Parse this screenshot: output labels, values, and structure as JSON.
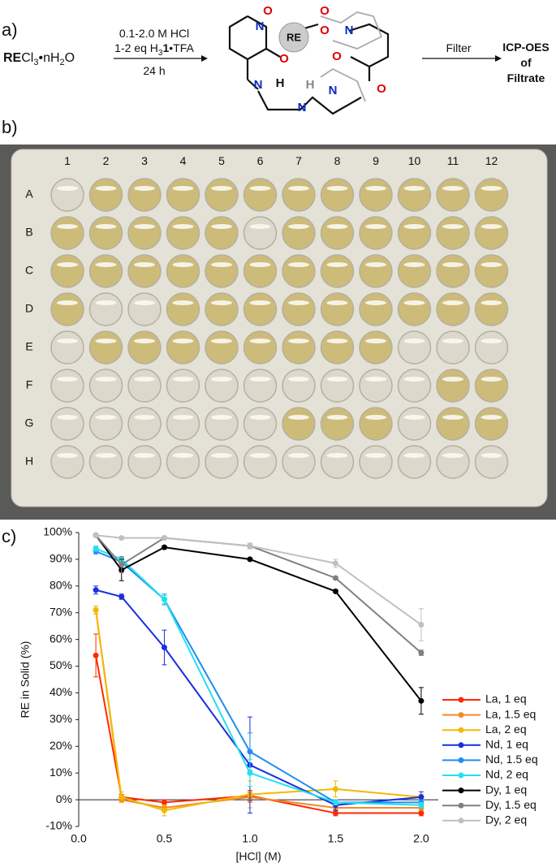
{
  "panel_a": {
    "label": "a)",
    "reactant": [
      "RE",
      "Cl",
      "3",
      "•nH",
      "2",
      "O"
    ],
    "conditions": {
      "line1": "0.1-2.0 M HCl",
      "line2": [
        "1-2 eq H",
        "3",
        "1",
        "•TFA"
      ],
      "line3": "24 h"
    },
    "filter": "Filter",
    "product": [
      "ICP-OES",
      "of",
      "Filtrate"
    ],
    "atoms": [
      "O",
      "N",
      "O",
      "RE",
      "O",
      "O",
      "N",
      "O",
      "N",
      "H",
      "N",
      "H",
      "N",
      "O"
    ]
  },
  "panel_b": {
    "label": "b)",
    "columns": [
      "1",
      "2",
      "3",
      "4",
      "5",
      "6",
      "7",
      "8",
      "9",
      "10",
      "11",
      "12"
    ],
    "rows": [
      "A",
      "B",
      "C",
      "D",
      "E",
      "F",
      "G",
      "H"
    ]
  },
  "chart_data": {
    "type": "line",
    "panel_label": "c)",
    "xlabel": "[HCl] (M)",
    "ylabel": "RE in Solid (%)",
    "x": [
      0.1,
      0.25,
      0.5,
      1.0,
      1.5,
      2.0
    ],
    "xlim": [
      0,
      2.1
    ],
    "xticks": [
      {
        "value": 0,
        "label": "0.0"
      },
      0.5,
      {
        "value": 1,
        "label": "1.0"
      },
      1.5,
      {
        "value": 2,
        "label": "2.0"
      }
    ],
    "ylim": [
      -10,
      100
    ],
    "yticks": [
      {
        "value": -10,
        "label": "-10%"
      },
      {
        "value": 0,
        "label": "0%"
      },
      {
        "value": 10,
        "label": "10%"
      },
      {
        "value": 20,
        "label": "20%"
      },
      {
        "value": 30,
        "label": "30%"
      },
      {
        "value": 40,
        "label": "40%"
      },
      {
        "value": 50,
        "label": "50%"
      },
      {
        "value": 60,
        "label": "60%"
      },
      {
        "value": 70,
        "label": "70%"
      },
      {
        "value": 80,
        "label": "80%"
      },
      {
        "value": 90,
        "label": "90%"
      },
      {
        "value": 100,
        "label": "100%"
      }
    ],
    "series": [
      {
        "name": "La, 1 eq",
        "color": "#ff2a00",
        "values": [
          54,
          1,
          -1,
          1.5,
          -5,
          -5
        ],
        "errors": [
          8,
          1,
          1,
          2,
          1,
          1
        ]
      },
      {
        "name": "La, 1.5 eq",
        "color": "#f08a2c",
        "values": [
          71,
          0,
          -3,
          1,
          -3,
          -3
        ],
        "errors": [
          1.5,
          1,
          1,
          2,
          1,
          1
        ]
      },
      {
        "name": "La, 2 eq",
        "color": "#f5b800",
        "values": [
          71,
          1,
          -4,
          2,
          4,
          1
        ],
        "errors": [
          1.5,
          2,
          2,
          5,
          3,
          1
        ]
      },
      {
        "name": "Nd, 1 eq",
        "color": "#1a2fe0",
        "values": [
          78.5,
          76,
          57,
          13,
          -2,
          1
        ],
        "errors": [
          1.5,
          1,
          6.5,
          18,
          2,
          2
        ]
      },
      {
        "name": "Nd, 1.5 eq",
        "color": "#1f8ef0",
        "values": [
          93,
          89,
          75,
          18,
          -1,
          -1
        ],
        "errors": [
          1,
          1.5,
          2,
          7,
          1,
          1
        ]
      },
      {
        "name": "Nd, 2 eq",
        "color": "#22e0f0",
        "values": [
          94,
          90,
          75,
          10,
          -1,
          -2
        ],
        "errors": [
          1,
          1,
          1.5,
          5,
          1,
          1
        ]
      },
      {
        "name": "Dy, 1 eq",
        "color": "#000000",
        "values": [
          99,
          86,
          94.5,
          90,
          78,
          37
        ],
        "errors": [
          0.5,
          4,
          0.5,
          0.5,
          0.5,
          5
        ]
      },
      {
        "name": "Dy, 1.5 eq",
        "color": "#808080",
        "values": [
          99,
          88,
          98,
          95,
          83,
          55
        ],
        "errors": [
          0.5,
          3,
          0.5,
          1,
          0.5,
          1
        ]
      },
      {
        "name": "Dy, 2 eq",
        "color": "#c0c0c0",
        "values": [
          99,
          98,
          98,
          95,
          88.5,
          65.5
        ],
        "errors": [
          0.5,
          0.5,
          0.5,
          1,
          1.5,
          6
        ]
      }
    ]
  }
}
